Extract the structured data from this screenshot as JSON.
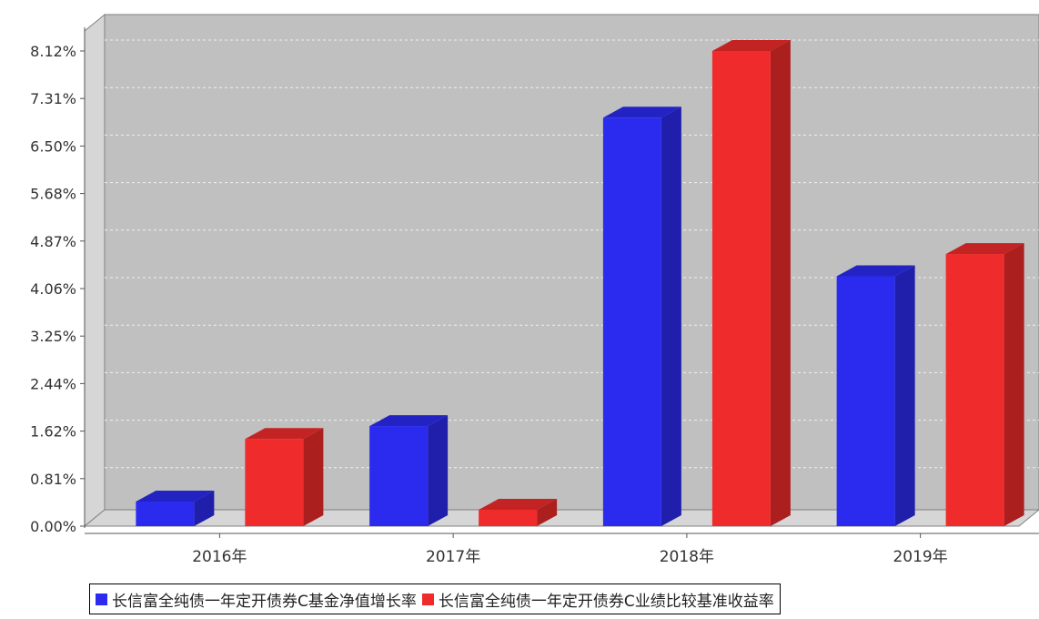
{
  "chart_data": {
    "type": "bar",
    "categories": [
      "2016年",
      "2017年",
      "2018年",
      "2019年"
    ],
    "series": [
      {
        "name": "长信富全纯债一年定开债券C基金净值增长率",
        "color": "#2b2bef",
        "values": [
          0.42,
          1.71,
          6.98,
          4.27
        ]
      },
      {
        "name": "长信富全纯债一年定开债券C业绩比较基准收益率",
        "color": "#ef2b2b",
        "values": [
          1.49,
          0.28,
          8.12,
          4.65
        ]
      }
    ],
    "y_ticks": [
      "0.00%",
      "0.81%",
      "1.62%",
      "2.44%",
      "3.25%",
      "4.06%",
      "4.87%",
      "5.68%",
      "6.50%",
      "7.31%",
      "8.12%"
    ],
    "ylim": [
      0,
      8.12
    ],
    "y_unit": "%",
    "grid": true,
    "legend_position": "bottom"
  }
}
